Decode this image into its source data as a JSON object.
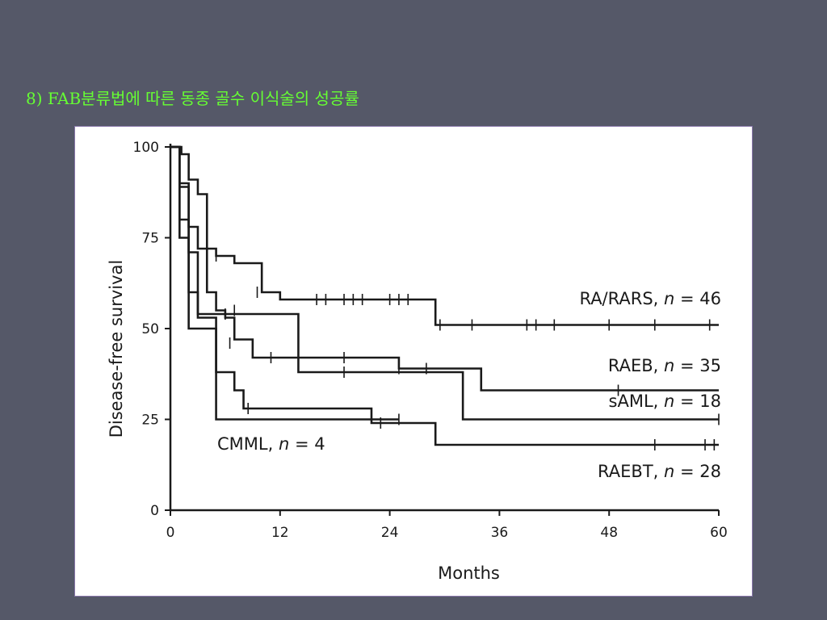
{
  "slide": {
    "title": "8) FAB분류법에 따른 동종 골수 이식술의 성공률"
  },
  "chart_data": {
    "type": "line",
    "subtype": "kaplan-meier step",
    "title": "",
    "xlabel": "Months",
    "ylabel": "Disease-free survival",
    "xlim": [
      0,
      60
    ],
    "ylim": [
      0,
      100
    ],
    "x_ticks": [
      0,
      12,
      24,
      36,
      48,
      60
    ],
    "y_ticks": [
      0,
      25,
      50,
      75,
      100
    ],
    "grid": false,
    "series": [
      {
        "name": "RA/RARS",
        "n_label": "n",
        "n_value": "= 46",
        "steps": [
          [
            0,
            100
          ],
          [
            1.2,
            98
          ],
          [
            2,
            91
          ],
          [
            3,
            87
          ],
          [
            4,
            72
          ],
          [
            5,
            70
          ],
          [
            7,
            68
          ],
          [
            10,
            60
          ],
          [
            12,
            58
          ],
          [
            29,
            51
          ],
          [
            60,
            51
          ]
        ],
        "censored": [
          [
            5,
            70
          ],
          [
            9.5,
            60
          ],
          [
            16,
            58
          ],
          [
            17,
            58
          ],
          [
            19,
            58
          ],
          [
            20,
            58
          ],
          [
            21,
            58
          ],
          [
            24,
            58
          ],
          [
            25,
            58
          ],
          [
            26,
            58
          ],
          [
            29.5,
            51
          ],
          [
            33,
            51
          ],
          [
            39,
            51
          ],
          [
            40,
            51
          ],
          [
            42,
            51
          ],
          [
            48,
            51
          ],
          [
            53,
            51
          ],
          [
            59,
            51
          ]
        ]
      },
      {
        "name": "RAEB",
        "n_label": "n",
        "n_value": "= 35",
        "steps": [
          [
            0,
            100
          ],
          [
            1,
            89
          ],
          [
            2,
            78
          ],
          [
            3,
            72
          ],
          [
            4,
            60
          ],
          [
            5,
            55
          ],
          [
            6,
            53
          ],
          [
            7,
            47
          ],
          [
            9,
            42
          ],
          [
            25,
            39
          ],
          [
            34,
            33
          ],
          [
            60,
            33
          ]
        ],
        "censored": [
          [
            7,
            55
          ],
          [
            6.5,
            46
          ],
          [
            11,
            42
          ],
          [
            19,
            42
          ],
          [
            25,
            39
          ],
          [
            28,
            39
          ],
          [
            49,
            33
          ]
        ]
      },
      {
        "name": "sAML",
        "n_label": "n",
        "n_value": "= 18",
        "steps": [
          [
            0,
            100
          ],
          [
            1,
            80
          ],
          [
            2,
            71
          ],
          [
            3,
            54
          ],
          [
            14,
            38
          ],
          [
            32,
            25
          ],
          [
            60,
            25
          ]
        ],
        "censored": [
          [
            6,
            54
          ],
          [
            19,
            38
          ],
          [
            60,
            25
          ]
        ]
      },
      {
        "name": "RAEBT",
        "n_label": "n",
        "n_value": "= 28",
        "steps": [
          [
            0,
            100
          ],
          [
            1,
            75
          ],
          [
            2,
            60
          ],
          [
            3,
            53
          ],
          [
            5,
            38
          ],
          [
            7,
            33
          ],
          [
            8,
            28
          ],
          [
            22,
            24
          ],
          [
            29,
            18
          ],
          [
            60,
            18
          ]
        ],
        "censored": [
          [
            8.5,
            28
          ],
          [
            23,
            24
          ],
          [
            53,
            18
          ],
          [
            58.5,
            18
          ],
          [
            59.5,
            18
          ]
        ]
      },
      {
        "name": "CMML",
        "n_label": "n",
        "n_value": "= 4",
        "steps": [
          [
            0,
            100
          ],
          [
            1,
            90
          ],
          [
            2,
            50
          ],
          [
            5,
            25
          ],
          [
            25,
            25
          ]
        ],
        "censored": [
          [
            25,
            25
          ]
        ]
      }
    ]
  }
}
